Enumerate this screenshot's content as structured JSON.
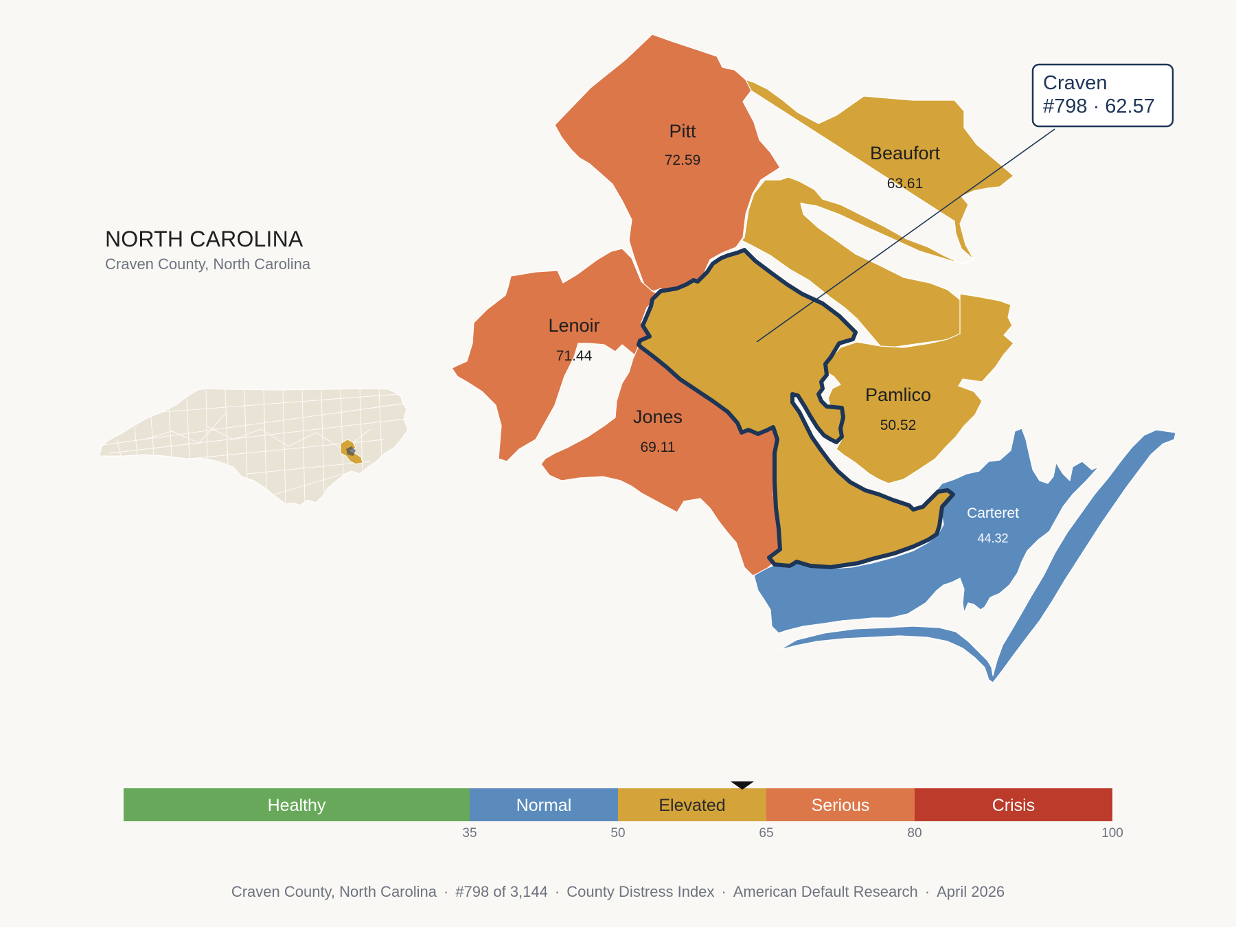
{
  "header": {
    "state": "NORTH CAROLINA",
    "subtitle": "Craven County, North Carolina"
  },
  "callout": {
    "name": "Craven",
    "rank_score": "#798 · 62.57"
  },
  "colors": {
    "healthy": "#68a85a",
    "normal": "#5b8bbd",
    "elevated": "#d4a43a",
    "serious": "#dc774a",
    "crisis": "#bc3b2b",
    "outline": "#1d3557",
    "inset_fill": "#e9e3d6"
  },
  "counties": [
    {
      "name": "Pitt",
      "score": "72.59",
      "band": "serious"
    },
    {
      "name": "Beaufort",
      "score": "63.61",
      "band": "elevated"
    },
    {
      "name": "Lenoir",
      "score": "71.44",
      "band": "serious"
    },
    {
      "name": "Jones",
      "score": "69.11",
      "band": "serious"
    },
    {
      "name": "Pamlico",
      "score": "50.52",
      "band": "elevated"
    },
    {
      "name": "Carteret",
      "score": "44.32",
      "band": "normal"
    },
    {
      "name": "Craven",
      "score": "62.57",
      "band": "elevated"
    }
  ],
  "legend": {
    "bands": [
      {
        "label": "Healthy",
        "from": 0,
        "to": 35,
        "color": "#68a85a",
        "text": "#ffffff"
      },
      {
        "label": "Normal",
        "from": 35,
        "to": 50,
        "color": "#5b8bbd",
        "text": "#ffffff"
      },
      {
        "label": "Elevated",
        "from": 50,
        "to": 65,
        "color": "#d4a43a",
        "text": "#2a2a2a"
      },
      {
        "label": "Serious",
        "from": 65,
        "to": 80,
        "color": "#dc774a",
        "text": "#ffffff"
      },
      {
        "label": "Crisis",
        "from": 80,
        "to": 100,
        "color": "#bc3b2b",
        "text": "#ffffff"
      }
    ],
    "ticks": [
      "35",
      "50",
      "65",
      "80",
      "100"
    ],
    "marker_value": 62.57
  },
  "footer": {
    "county": "Craven County, North Carolina",
    "rank": "#798 of 3,144",
    "index": "County Distress Index",
    "source": "American Default Research",
    "date": "April 2026"
  }
}
